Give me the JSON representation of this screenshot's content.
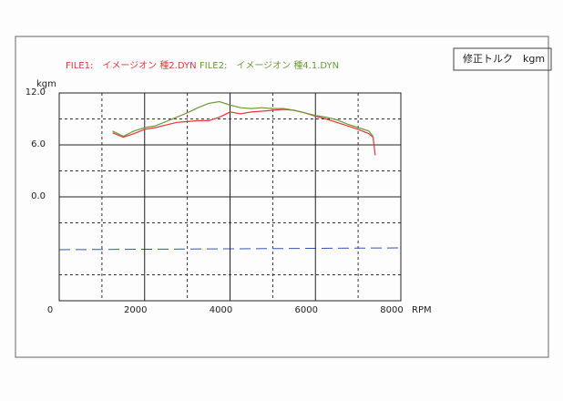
{
  "chart_data": {
    "type": "line",
    "label_box": "修正トルク　kgm",
    "xlabel": "RPM",
    "ylabel": "kgm",
    "xlim": [
      0,
      8000
    ],
    "xticks": [
      0,
      2000,
      4000,
      6000,
      8000
    ],
    "ylim": [
      -12,
      12
    ],
    "yticks": [
      {
        "value": 12,
        "label": "12.0"
      },
      {
        "value": 6,
        "label": "6.0"
      },
      {
        "value": 0,
        "label": "0.0"
      }
    ],
    "series": [
      {
        "name": "FILE1:　イメージオン 種2.DYN",
        "color": "#e8353a",
        "x": [
          1250,
          1500,
          1750,
          2000,
          2250,
          2500,
          2750,
          3000,
          3250,
          3500,
          3750,
          4000,
          4250,
          4500,
          4750,
          5000,
          5250,
          5500,
          5750,
          6000,
          6250,
          6500,
          6750,
          7000,
          7250,
          7350,
          7400
        ],
        "values": [
          7.4,
          6.9,
          7.3,
          7.8,
          8.0,
          8.3,
          8.6,
          8.7,
          8.8,
          8.8,
          9.2,
          9.8,
          9.6,
          9.8,
          9.9,
          10.0,
          10.1,
          10.0,
          9.7,
          9.3,
          9.0,
          8.6,
          8.2,
          7.8,
          7.3,
          6.9,
          4.8
        ]
      },
      {
        "name": "FILE2:　イメージオン 種4.1.DYN",
        "color": "#6a9a3a",
        "x": [
          1250,
          1500,
          1750,
          2000,
          2250,
          2500,
          2750,
          3000,
          3250,
          3500,
          3750,
          4000,
          4250,
          4500,
          4750,
          5000,
          5250,
          5500,
          5750,
          6000,
          6250,
          6500,
          6750,
          7000,
          7250,
          7350
        ],
        "values": [
          7.6,
          7.0,
          7.6,
          8.0,
          8.2,
          8.7,
          9.2,
          9.7,
          10.3,
          10.8,
          11.0,
          10.6,
          10.3,
          10.2,
          10.3,
          10.2,
          10.2,
          10.0,
          9.7,
          9.4,
          9.2,
          8.9,
          8.4,
          8.0,
          7.6,
          7.0
        ]
      }
    ]
  }
}
